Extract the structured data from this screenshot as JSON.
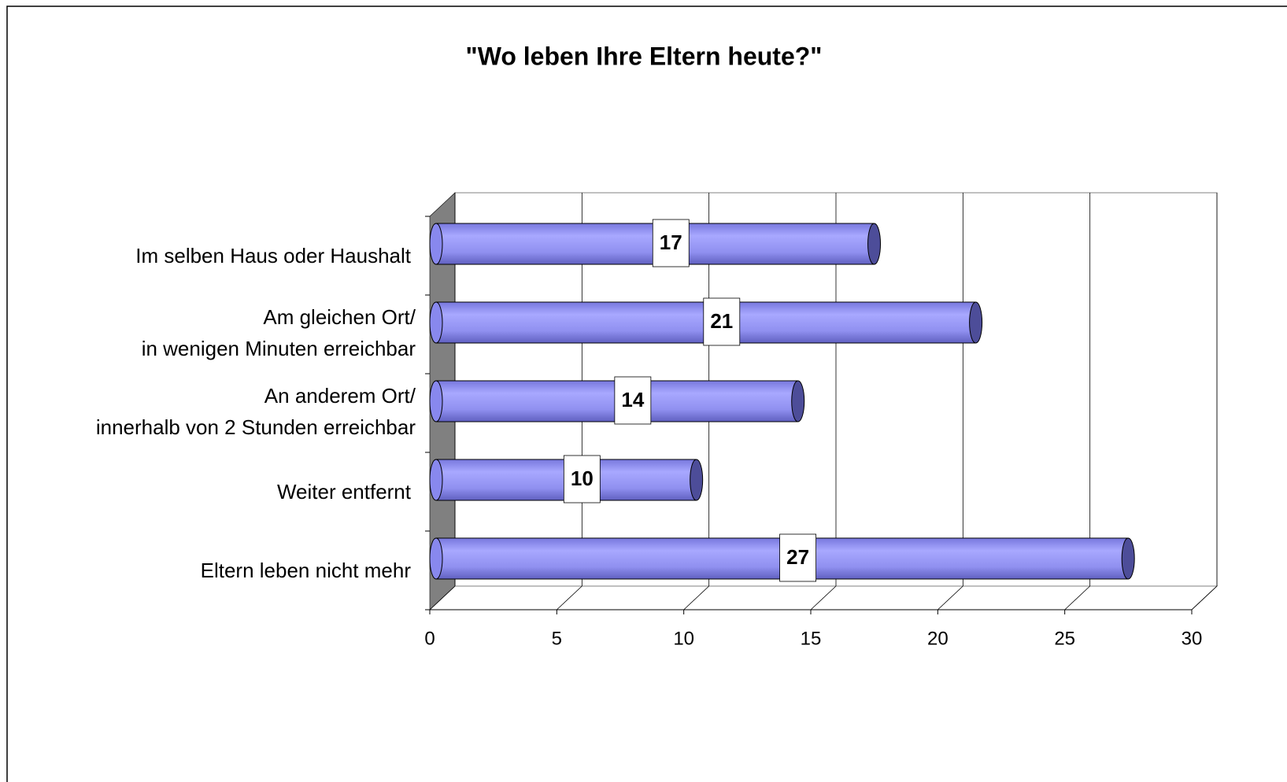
{
  "chart_data": {
    "type": "bar",
    "orientation": "horizontal",
    "title": "\"Wo leben Ihre Eltern heute?\"",
    "categories": [
      [
        "Im selben Haus oder Haushalt"
      ],
      [
        "Am gleichen Ort/",
        "in wenigen Minuten erreichbar"
      ],
      [
        "An anderem Ort/",
        "innerhalb von 2 Stunden erreichbar"
      ],
      [
        "Weiter entfernt"
      ],
      [
        "Eltern leben nicht mehr"
      ]
    ],
    "values": [
      17,
      21,
      14,
      10,
      27
    ],
    "color": "#9999ff",
    "xlim": [
      0,
      30
    ],
    "xticks": [
      0,
      5,
      10,
      15,
      20,
      25,
      30
    ],
    "grid": true
  }
}
